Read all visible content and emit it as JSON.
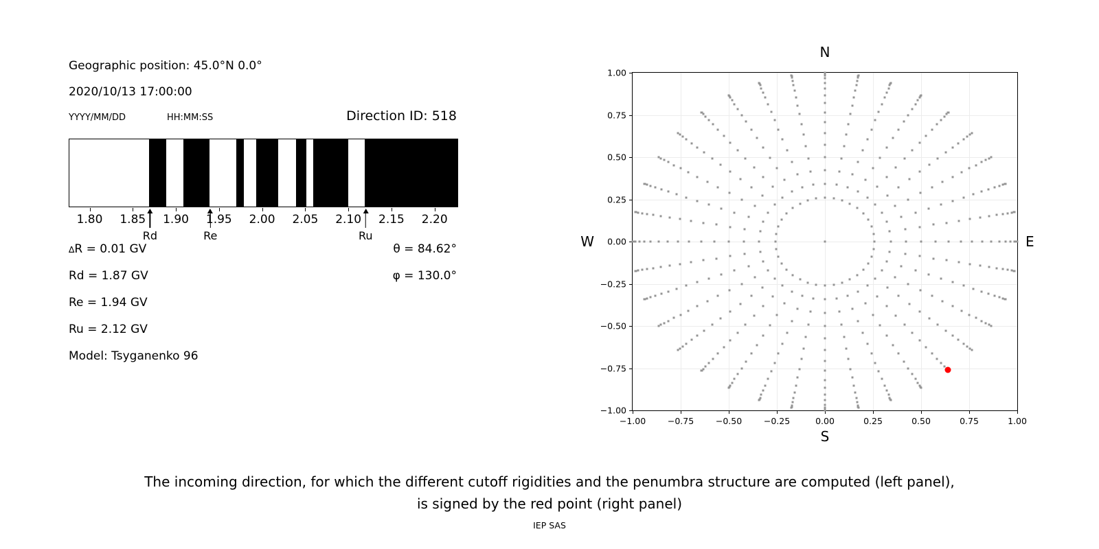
{
  "header": {
    "geographic_position": "Geographic position: 45.0°N 0.0°",
    "datetime": "2020/10/13 17:00:00",
    "date_format_label": "YYYY/MM/DD",
    "time_format_label": "HH:MM:SS",
    "direction_id": "Direction ID: 518"
  },
  "parameters": {
    "delta_symbol": "∆",
    "delta_R_rest": "R = 0.01 GV",
    "Rd": "Rd = 1.87 GV",
    "Re": "Re = 1.94 GV",
    "Ru": "Ru = 2.12 GV",
    "model": "Model: Tsyganenko 96",
    "theta": "θ = 84.62°",
    "phi": "φ = 130.0°"
  },
  "caption": {
    "line1": "The incoming direction, for which the different cutoff rigidities and the penumbra structure are computed (left panel),",
    "line2": "is signed by the red point (right panel)",
    "credit": "IEP SAS"
  },
  "chart_data": [
    {
      "type": "bar",
      "name": "penumbra-structure",
      "unit": "GV",
      "xlim": [
        1.7765,
        2.2265
      ],
      "xticks": [
        1.8,
        1.85,
        1.9,
        1.95,
        2.0,
        2.05,
        2.1,
        2.15,
        2.2
      ],
      "xtick_labels": [
        "1.80",
        "1.85",
        "1.90",
        "1.95",
        "2.00",
        "2.05",
        "2.10",
        "2.15",
        "2.20"
      ],
      "black_bands_gv": [
        [
          1.869,
          1.889
        ],
        [
          1.909,
          1.939
        ],
        [
          1.97,
          1.979
        ],
        [
          1.993,
          2.019
        ],
        [
          2.039,
          2.051
        ],
        [
          2.059,
          2.1
        ],
        [
          2.119,
          2.2265
        ]
      ],
      "allowed_color": "#ffffff",
      "forbidden_color": "#000000",
      "markers": [
        {
          "label": "Rd",
          "value_gv": 1.87
        },
        {
          "label": "Re",
          "value_gv": 1.94
        },
        {
          "label": "Ru",
          "value_gv": 2.12
        }
      ]
    },
    {
      "type": "scatter",
      "name": "incoming-direction-map",
      "xlim": [
        -1.0,
        1.0
      ],
      "ylim": [
        -1.0,
        1.0
      ],
      "xtick_labels": [
        "−1.00",
        "−0.75",
        "−0.50",
        "−0.25",
        "0.00",
        "0.25",
        "0.50",
        "0.75",
        "1.00"
      ],
      "ytick_labels": [
        "1.00",
        "0.75",
        "0.50",
        "0.25",
        "0.00",
        "−0.25",
        "−0.50",
        "−0.75",
        "−1.00"
      ],
      "grid": true,
      "compass_labels": {
        "top": "N",
        "right": "E",
        "bottom": "S",
        "left": "W"
      },
      "dot_grid": {
        "azimuth_start_deg": 0,
        "azimuth_step_deg": 10,
        "azimuth_count": 36,
        "zenith_start_deg": 15,
        "zenith_step_deg": 5,
        "zenith_end_deg": 90,
        "radius_rule": "sin(zenith)",
        "center_dot": true,
        "color": "#949494"
      },
      "red_point": {
        "x": 0.64,
        "y": -0.76,
        "color": "#ff0000"
      }
    }
  ]
}
